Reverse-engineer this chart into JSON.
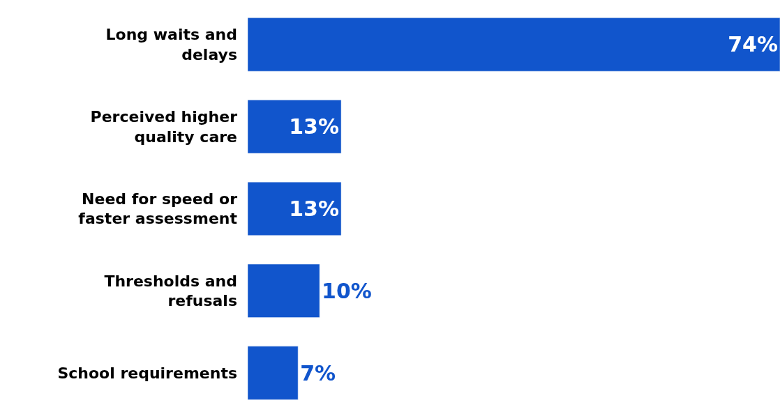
{
  "chart_data": {
    "type": "bar",
    "orientation": "horizontal",
    "categories": [
      "Long waits and delays",
      "Perceived higher quality care",
      "Need for speed or faster assessment",
      "Thresholds and refusals",
      "School requirements"
    ],
    "values": [
      74,
      13,
      13,
      10,
      7
    ],
    "value_labels": [
      "74%",
      "13%",
      "13%",
      "10%",
      "7%"
    ],
    "color": "#1155cc",
    "tick_labels": "y"
  }
}
